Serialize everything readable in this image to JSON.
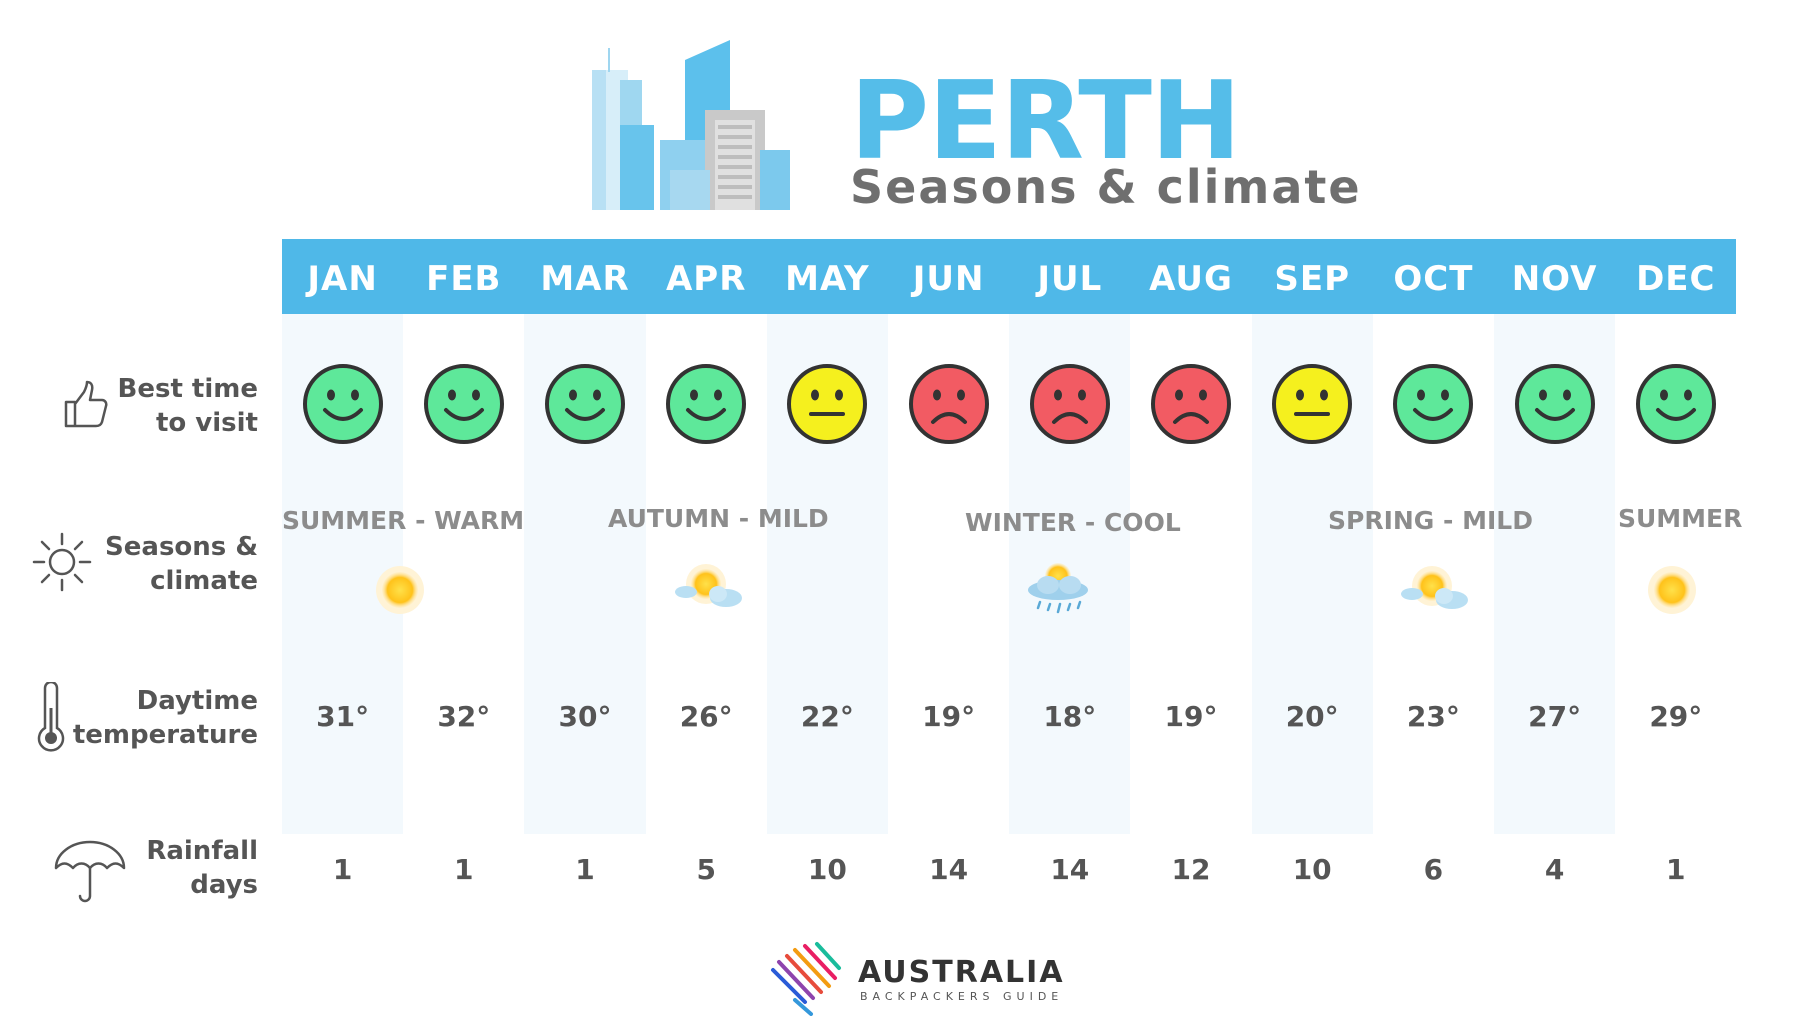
{
  "header": {
    "title": "PERTH",
    "subtitle": "Seasons & climate"
  },
  "rows": {
    "best_time": [
      "Best time",
      "to visit"
    ],
    "seasons": [
      "Seasons &",
      "climate"
    ],
    "temperature": [
      "Daytime",
      "temperature"
    ],
    "rainfall": [
      "Rainfall",
      "days"
    ]
  },
  "season_labels": [
    "SUMMER - WARM",
    "AUTUMN - MILD",
    "WINTER - COOL",
    "SPRING - MILD",
    "SUMMER"
  ],
  "chart_data": {
    "type": "table",
    "categories": [
      "JAN",
      "FEB",
      "MAR",
      "APR",
      "MAY",
      "JUN",
      "JUL",
      "AUG",
      "SEP",
      "OCT",
      "NOV",
      "DEC"
    ],
    "best_time_rating": [
      "happy",
      "happy",
      "happy",
      "happy",
      "neutral",
      "sad",
      "sad",
      "sad",
      "neutral",
      "happy",
      "happy",
      "happy"
    ],
    "temperature_labels": [
      "31°",
      "32°",
      "30°",
      "26°",
      "22°",
      "19°",
      "18°",
      "19°",
      "20°",
      "23°",
      "27°",
      "29°"
    ],
    "temperature_c": [
      31,
      32,
      30,
      26,
      22,
      19,
      18,
      19,
      20,
      23,
      27,
      29
    ],
    "rainfall_days": [
      "1",
      "1",
      "1",
      "5",
      "10",
      "14",
      "14",
      "12",
      "10",
      "6",
      "4",
      "1"
    ],
    "season_icons": [
      {
        "icon": "sun-icon",
        "month": "FEB"
      },
      {
        "icon": "sun-cloud-icon",
        "month": "APR"
      },
      {
        "icon": "rain-cloud-icon",
        "month": "JUL"
      },
      {
        "icon": "sun-cloud-icon",
        "month": "OCT"
      },
      {
        "icon": "sun-icon",
        "month": "DEC"
      }
    ]
  },
  "colors": {
    "accent": "#4fb8e8",
    "happy": "#5ee89a",
    "neutral": "#f5f01e",
    "sad": "#f25b63"
  },
  "footer": {
    "brand": "AUSTRALIA",
    "tagline": "BACKPACKERS GUIDE"
  }
}
